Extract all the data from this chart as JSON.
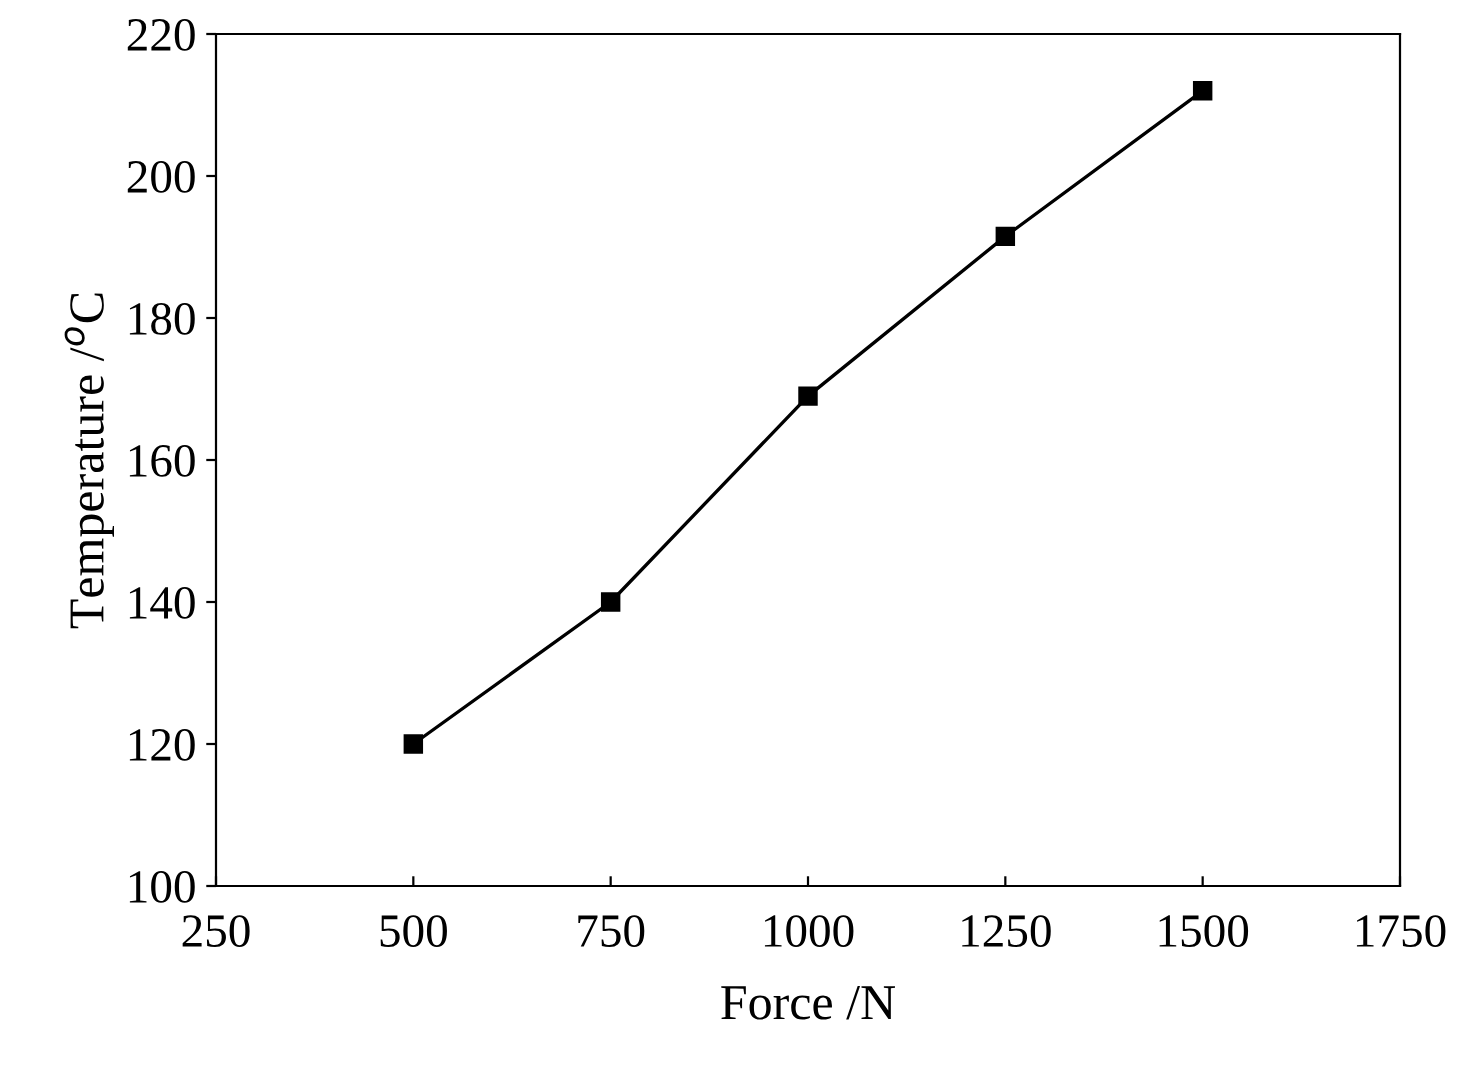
{
  "chart_data": {
    "type": "line",
    "xlabel": "Force /N",
    "ylabel": "Temperature /$^{o}$C",
    "x": [
      500,
      750,
      1000,
      1250,
      1500
    ],
    "series": [
      {
        "color": "#000000",
        "values": [
          120,
          140,
          169,
          191.5,
          212
        ]
      }
    ],
    "xlim": [
      250,
      1750
    ],
    "xticks": [
      250,
      500,
      750,
      1000,
      1250,
      1500,
      1750
    ],
    "ylim": [
      100,
      220
    ],
    "yticks": [
      100,
      120,
      140,
      160,
      180,
      200,
      220
    ],
    "marker": "square",
    "line_style": "solid",
    "grid": false
  }
}
